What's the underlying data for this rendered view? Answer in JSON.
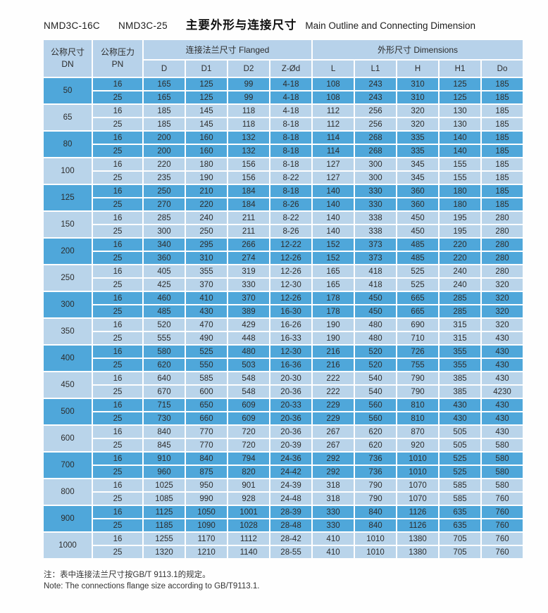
{
  "title": {
    "model1": "NMD3C-16C",
    "model2": "NMD3C-25",
    "cn": "主要外形与连接尺寸",
    "en": "Main Outline and Connecting Dimension"
  },
  "header": {
    "dn_cn": "公称尺寸",
    "dn_en": "DN",
    "pn_cn": "公称压力",
    "pn_en": "PN",
    "flanged": "连接法兰尺寸 Flanged",
    "dimensions": "外形尺寸 Dimensions",
    "columns": [
      "D",
      "D1",
      "D2",
      "Z-Ød",
      "L",
      "L1",
      "H",
      "H1",
      "Do"
    ]
  },
  "colors": {
    "row_dark": "#4fa7da",
    "row_light": "#b9d4ea",
    "header_bg": "#b7d2ea"
  },
  "table": {
    "row_fields": [
      "PN",
      "D",
      "D1",
      "D2",
      "Z-Ød",
      "L",
      "L1",
      "H",
      "H1",
      "Do"
    ],
    "groups": [
      {
        "dn": "50",
        "rows": [
          [
            "16",
            "165",
            "125",
            "99",
            "4-18",
            "108",
            "243",
            "310",
            "125",
            "185"
          ],
          [
            "25",
            "165",
            "125",
            "99",
            "4-18",
            "108",
            "243",
            "310",
            "125",
            "185"
          ]
        ]
      },
      {
        "dn": "65",
        "rows": [
          [
            "16",
            "185",
            "145",
            "118",
            "4-18",
            "112",
            "256",
            "320",
            "130",
            "185"
          ],
          [
            "25",
            "185",
            "145",
            "118",
            "8-18",
            "112",
            "256",
            "320",
            "130",
            "185"
          ]
        ]
      },
      {
        "dn": "80",
        "rows": [
          [
            "16",
            "200",
            "160",
            "132",
            "8-18",
            "114",
            "268",
            "335",
            "140",
            "185"
          ],
          [
            "25",
            "200",
            "160",
            "132",
            "8-18",
            "114",
            "268",
            "335",
            "140",
            "185"
          ]
        ]
      },
      {
        "dn": "100",
        "rows": [
          [
            "16",
            "220",
            "180",
            "156",
            "8-18",
            "127",
            "300",
            "345",
            "155",
            "185"
          ],
          [
            "25",
            "235",
            "190",
            "156",
            "8-22",
            "127",
            "300",
            "345",
            "155",
            "185"
          ]
        ]
      },
      {
        "dn": "125",
        "rows": [
          [
            "16",
            "250",
            "210",
            "184",
            "8-18",
            "140",
            "330",
            "360",
            "180",
            "185"
          ],
          [
            "25",
            "270",
            "220",
            "184",
            "8-26",
            "140",
            "330",
            "360",
            "180",
            "185"
          ]
        ]
      },
      {
        "dn": "150",
        "rows": [
          [
            "16",
            "285",
            "240",
            "211",
            "8-22",
            "140",
            "338",
            "450",
            "195",
            "280"
          ],
          [
            "25",
            "300",
            "250",
            "211",
            "8-26",
            "140",
            "338",
            "450",
            "195",
            "280"
          ]
        ]
      },
      {
        "dn": "200",
        "rows": [
          [
            "16",
            "340",
            "295",
            "266",
            "12-22",
            "152",
            "373",
            "485",
            "220",
            "280"
          ],
          [
            "25",
            "360",
            "310",
            "274",
            "12-26",
            "152",
            "373",
            "485",
            "220",
            "280"
          ]
        ]
      },
      {
        "dn": "250",
        "rows": [
          [
            "16",
            "405",
            "355",
            "319",
            "12-26",
            "165",
            "418",
            "525",
            "240",
            "280"
          ],
          [
            "25",
            "425",
            "370",
            "330",
            "12-30",
            "165",
            "418",
            "525",
            "240",
            "320"
          ]
        ]
      },
      {
        "dn": "300",
        "rows": [
          [
            "16",
            "460",
            "410",
            "370",
            "12-26",
            "178",
            "450",
            "665",
            "285",
            "320"
          ],
          [
            "25",
            "485",
            "430",
            "389",
            "16-30",
            "178",
            "450",
            "665",
            "285",
            "320"
          ]
        ]
      },
      {
        "dn": "350",
        "rows": [
          [
            "16",
            "520",
            "470",
            "429",
            "16-26",
            "190",
            "480",
            "690",
            "315",
            "320"
          ],
          [
            "25",
            "555",
            "490",
            "448",
            "16-33",
            "190",
            "480",
            "710",
            "315",
            "430"
          ]
        ]
      },
      {
        "dn": "400",
        "rows": [
          [
            "16",
            "580",
            "525",
            "480",
            "12-30",
            "216",
            "520",
            "726",
            "355",
            "430"
          ],
          [
            "25",
            "620",
            "550",
            "503",
            "16-36",
            "216",
            "520",
            "755",
            "355",
            "430"
          ]
        ]
      },
      {
        "dn": "450",
        "rows": [
          [
            "16",
            "640",
            "585",
            "548",
            "20-30",
            "222",
            "540",
            "790",
            "385",
            "430"
          ],
          [
            "25",
            "670",
            "600",
            "548",
            "20-36",
            "222",
            "540",
            "790",
            "385",
            "4230"
          ]
        ]
      },
      {
        "dn": "500",
        "rows": [
          [
            "16",
            "715",
            "650",
            "609",
            "20-33",
            "229",
            "560",
            "810",
            "430",
            "430"
          ],
          [
            "25",
            "730",
            "660",
            "609",
            "20-36",
            "229",
            "560",
            "810",
            "430",
            "430"
          ]
        ]
      },
      {
        "dn": "600",
        "rows": [
          [
            "16",
            "840",
            "770",
            "720",
            "20-36",
            "267",
            "620",
            "870",
            "505",
            "430"
          ],
          [
            "25",
            "845",
            "770",
            "720",
            "20-39",
            "267",
            "620",
            "920",
            "505",
            "580"
          ]
        ]
      },
      {
        "dn": "700",
        "rows": [
          [
            "16",
            "910",
            "840",
            "794",
            "24-36",
            "292",
            "736",
            "1010",
            "525",
            "580"
          ],
          [
            "25",
            "960",
            "875",
            "820",
            "24-42",
            "292",
            "736",
            "1010",
            "525",
            "580"
          ]
        ]
      },
      {
        "dn": "800",
        "rows": [
          [
            "16",
            "1025",
            "950",
            "901",
            "24-39",
            "318",
            "790",
            "1070",
            "585",
            "580"
          ],
          [
            "25",
            "1085",
            "990",
            "928",
            "24-48",
            "318",
            "790",
            "1070",
            "585",
            "760"
          ]
        ]
      },
      {
        "dn": "900",
        "rows": [
          [
            "16",
            "1125",
            "1050",
            "1001",
            "28-39",
            "330",
            "840",
            "1126",
            "635",
            "760"
          ],
          [
            "25",
            "1185",
            "1090",
            "1028",
            "28-48",
            "330",
            "840",
            "1126",
            "635",
            "760"
          ]
        ]
      },
      {
        "dn": "1000",
        "rows": [
          [
            "16",
            "1255",
            "1170",
            "1112",
            "28-42",
            "410",
            "1010",
            "1380",
            "705",
            "760"
          ],
          [
            "25",
            "1320",
            "1210",
            "1140",
            "28-55",
            "410",
            "1010",
            "1380",
            "705",
            "760"
          ]
        ]
      }
    ]
  },
  "notes": {
    "cn": "注：表中连接法兰尺寸按GB/T 9113.1的规定。",
    "en": "Note: The connections flange size according to GB/T9113.1."
  }
}
